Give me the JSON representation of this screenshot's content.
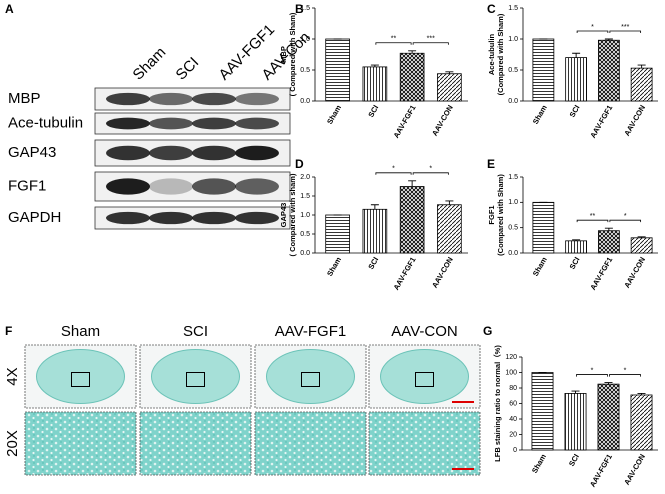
{
  "panel_labels": [
    "A",
    "B",
    "C",
    "D",
    "E",
    "F",
    "G"
  ],
  "blot": {
    "columns": [
      "Sham",
      "SCI",
      "AAV-FGF1",
      "AAV-Con"
    ],
    "rows": [
      "MBP",
      "Ace-tubulin",
      "GAP43",
      "FGF1",
      "GAPDH"
    ]
  },
  "histology": {
    "columns": [
      "Sham",
      "SCI",
      "AAV-FGF1",
      "AAV-CON"
    ],
    "rows": [
      "4X",
      "20X"
    ]
  },
  "chart_data": [
    {
      "type": "bar",
      "ylabel": [
        "MBP",
        "( Compared with Sham)"
      ],
      "categories": [
        "Sham",
        "SCI",
        "AAV-FGF1",
        "AAV-CON"
      ],
      "values": [
        1.0,
        0.55,
        0.77,
        0.44
      ],
      "errors": [
        0,
        0.03,
        0.04,
        0.03
      ],
      "color": "#000000",
      "ylim": [
        0,
        1.5
      ],
      "yticks": [
        {
          "value": 0,
          "label": "0.0"
        },
        0.5,
        {
          "value": 1,
          "label": "1.0"
        },
        1.5
      ],
      "annotations": [
        "**",
        "***"
      ]
    },
    {
      "type": "bar",
      "ylabel": [
        "Ace-tubulin",
        "(Compared with Sham)"
      ],
      "categories": [
        "Sham",
        "SCI",
        "AAV-FGF1",
        "AAV-CON"
      ],
      "values": [
        1.0,
        0.7,
        0.98,
        0.53
      ],
      "errors": [
        0,
        0.07,
        0.02,
        0.05
      ],
      "color": "#000000",
      "ylim": [
        0,
        1.5
      ],
      "yticks": [
        {
          "value": 0,
          "label": "0.0"
        },
        0.5,
        {
          "value": 1,
          "label": "1.0"
        },
        1.5
      ],
      "annotations": [
        "*",
        "***"
      ]
    },
    {
      "type": "bar",
      "ylabel": [
        "GAP43",
        "( Compared with sham)"
      ],
      "categories": [
        "Sham",
        "SCI",
        "AAV-FGF1",
        "AAV-CON"
      ],
      "values": [
        1.0,
        1.15,
        1.75,
        1.27
      ],
      "errors": [
        0,
        0.12,
        0.15,
        0.1
      ],
      "color": "#000000",
      "ylim": [
        0,
        2
      ],
      "yticks": [
        {
          "value": 0,
          "label": "0.0"
        },
        0.5,
        {
          "value": 1,
          "label": "1.0"
        },
        1.5,
        {
          "value": 2,
          "label": "2.0"
        }
      ],
      "annotations": [
        "*",
        "*"
      ]
    },
    {
      "type": "bar",
      "ylabel": [
        "FGF1",
        "(Compared with Sham)"
      ],
      "categories": [
        "Sham",
        "SCI",
        "AAV-FGF1",
        "AAV-CON"
      ],
      "values": [
        1.0,
        0.24,
        0.44,
        0.3
      ],
      "errors": [
        0,
        0.02,
        0.05,
        0.02
      ],
      "color": "#000000",
      "ylim": [
        0,
        1.5
      ],
      "yticks": [
        {
          "value": 0,
          "label": "0.0"
        },
        0.5,
        {
          "value": 1,
          "label": "1.0"
        },
        1.5
      ],
      "annotations": [
        "**",
        "*"
      ]
    },
    {
      "type": "bar",
      "ylabel": [
        "LFB staining ratio to normal（%)"
      ],
      "categories": [
        "Sham",
        "SCI",
        "AAV-FGF1",
        "AAV-CON"
      ],
      "values": [
        100,
        73,
        85,
        71
      ],
      "errors": [
        0,
        3,
        2,
        2
      ],
      "color": "#000000",
      "ylim": [
        0,
        120
      ],
      "yticks": [
        0,
        20,
        40,
        60,
        80,
        100,
        120
      ],
      "annotations": [
        "*",
        "*"
      ]
    }
  ]
}
